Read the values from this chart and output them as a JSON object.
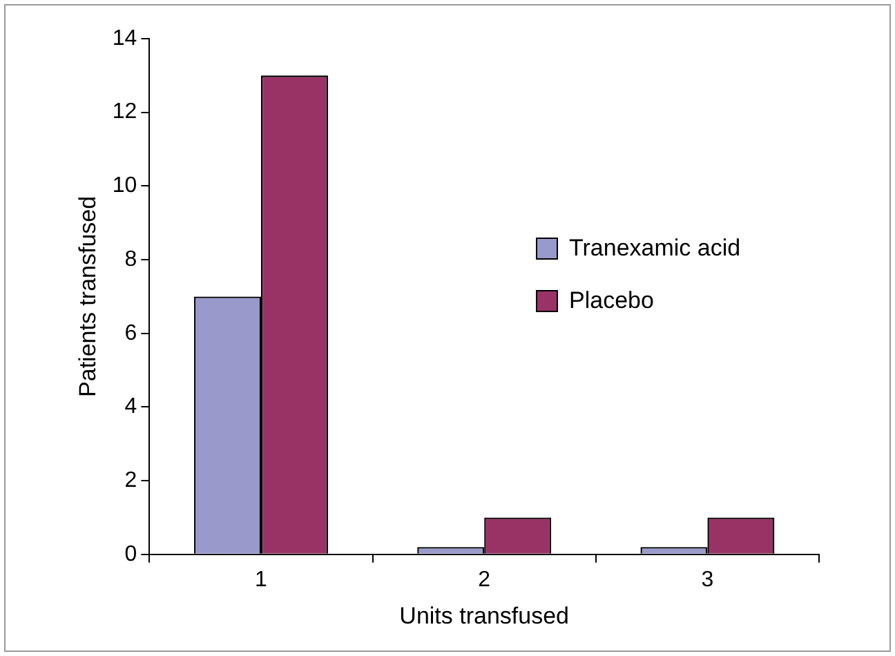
{
  "chart_data": {
    "type": "bar",
    "xlabel": "Units transfused",
    "ylabel": "Patients transfused",
    "categories": [
      "1",
      "2",
      "3"
    ],
    "series": [
      {
        "name": "Tranexamic acid",
        "color": "#9999cc",
        "values": [
          7,
          0.2,
          0.2
        ]
      },
      {
        "name": "Placebo",
        "color": "#993366",
        "values": [
          13,
          1,
          1
        ]
      }
    ],
    "ylim": [
      0,
      14
    ],
    "yticks": [
      0,
      2,
      4,
      6,
      8,
      10,
      12,
      14
    ],
    "grid": false,
    "legend": "right"
  }
}
